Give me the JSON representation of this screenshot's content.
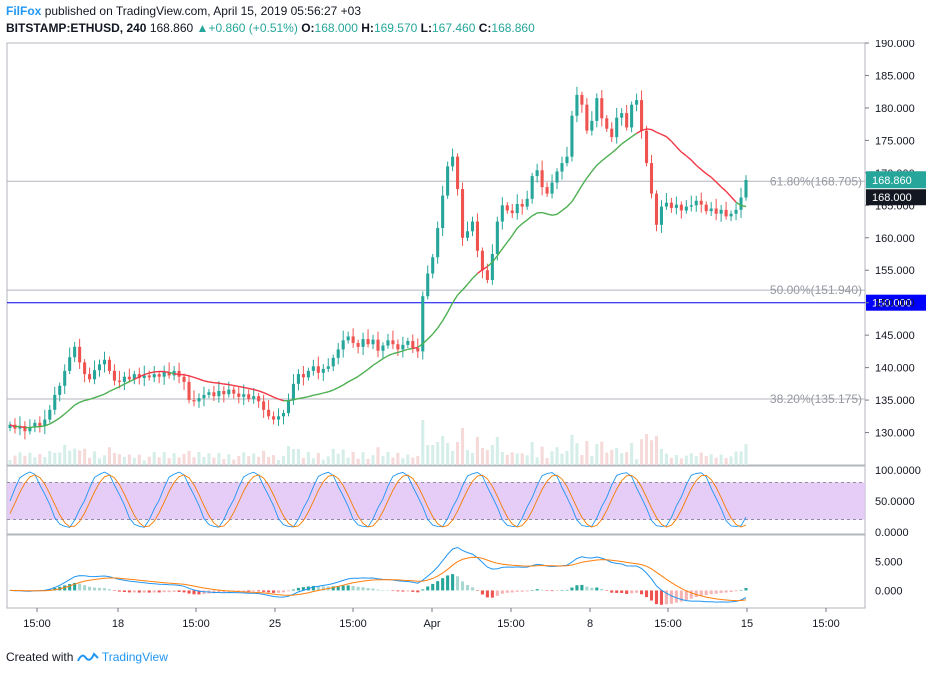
{
  "header": {
    "author": "FilFox",
    "published_text": "published on TradingView.com, April 15, 2019 05:56:27 +03",
    "symbol": "BITSTAMP:ETHUSD, 240",
    "last": "168.860",
    "change": "+0.860 (+0.51%)",
    "o_label": "O:",
    "o_value": "168.000",
    "h_label": "H:",
    "h_value": "169.570",
    "l_label": "L:",
    "l_value": "167.460",
    "c_label": "C:",
    "c_value": "168.860"
  },
  "footer": {
    "created_with": "Created with",
    "brand": "TradingView"
  },
  "colors": {
    "up": "#26a69a",
    "down": "#ef5350",
    "ma": "#4caf50",
    "ma_red": "#f23645",
    "fib": "#b2b5be",
    "hline": "#0000ff",
    "stoch_band": "#e1c4f7",
    "stoch_k": "#2196f3",
    "stoch_d": "#f57c00",
    "macd": "#2196f3",
    "signal": "#ff7f0e"
  },
  "chart_data": {
    "type": "candlestick",
    "price_axis": {
      "ylim": [
        125,
        190
      ],
      "ticks": [
        "190.000",
        "185.000",
        "180.000",
        "175.000",
        "170.000",
        "165.000",
        "160.000",
        "155.000",
        "150.000",
        "145.000",
        "140.000",
        "135.000",
        "130.000"
      ]
    },
    "time_axis": {
      "labels": [
        "15:00",
        "18",
        "15:00",
        "25",
        "15:00",
        "Apr",
        "15:00",
        "8",
        "15:00",
        "15",
        "15:00"
      ]
    },
    "last_price_label": "168.860",
    "open_price_label": "168.000",
    "horizontal_line_label": "150.000",
    "fib_levels": [
      {
        "level": 168.705,
        "label": "61.80%(168.705)"
      },
      {
        "level": 151.94,
        "label": "50.00%(151.940)"
      },
      {
        "level": 135.175,
        "label": "38.20%(135.175)"
      }
    ],
    "horizontal_line": 150.0,
    "candles_close": [
      131.2,
      130.6,
      131.0,
      130.2,
      130.8,
      131.5,
      131.0,
      132.0,
      133.5,
      135.8,
      137.2,
      139.5,
      141.6,
      143.2,
      140.8,
      139.0,
      138.2,
      139.6,
      140.5,
      141.2,
      139.5,
      138.0,
      137.8,
      138.6,
      138.2,
      139.0,
      138.4,
      138.8,
      138.5,
      139.0,
      138.6,
      139.3,
      138.8,
      139.5,
      138.6,
      137.8,
      135.0,
      134.8,
      135.3,
      135.8,
      136.2,
      135.6,
      136.4,
      135.9,
      136.6,
      136.0,
      135.5,
      135.9,
      135.2,
      135.6,
      134.8,
      133.5,
      132.5,
      132.0,
      132.5,
      133.0,
      135.0,
      137.5,
      139.0,
      138.5,
      139.5,
      140.2,
      139.2,
      139.8,
      140.2,
      141.5,
      142.8,
      144.2,
      144.8,
      143.8,
      143.2,
      144.4,
      143.6,
      144.3,
      142.6,
      143.4,
      144.2,
      143.6,
      142.8,
      143.5,
      144.1,
      143.0,
      142.5,
      151.0,
      154.5,
      157.0,
      161.5,
      166.5,
      171.0,
      172.5,
      167.5,
      160.0,
      161.0,
      162.5,
      158.0,
      155.0,
      153.5,
      157.5,
      162.5,
      165.0,
      164.2,
      163.8,
      165.2,
      164.8,
      166.0,
      169.5,
      170.4,
      167.8,
      166.8,
      168.5,
      170.2,
      171.5,
      172.5,
      178.8,
      182.0,
      180.5,
      176.5,
      178.0,
      181.5,
      178.4,
      176.8,
      175.5,
      178.5,
      179.2,
      177.0,
      180.5,
      181.2,
      176.5,
      171.5,
      166.8,
      162.0,
      164.8,
      165.4,
      164.6,
      165.1,
      164.2,
      164.8,
      165.0,
      165.7,
      165.1,
      164.1,
      164.5,
      163.7,
      164.3,
      163.3,
      163.7,
      164.3,
      166.2,
      168.9
    ],
    "series": [
      {
        "name": "MA",
        "color": "#4caf50"
      },
      {
        "name": "Stoch RSI",
        "ylim": [
          0,
          100
        ],
        "ticks": [
          "100.0000",
          "50.0000",
          "0.0000"
        ],
        "band": [
          20,
          80
        ]
      },
      {
        "name": "MACD",
        "ylim": [
          -2.5,
          9
        ],
        "ticks": [
          "5.000",
          "0.000"
        ]
      }
    ]
  }
}
